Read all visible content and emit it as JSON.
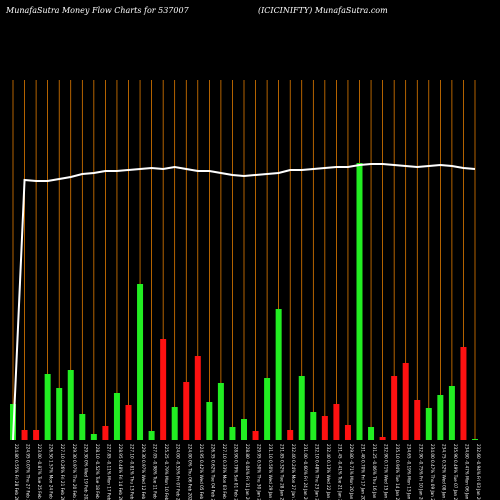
{
  "header": {
    "left_title": "MunafaSutra  Money Flow  Charts for 537007",
    "right_title": "(ICICINIFTY) MunafaSutra.com"
  },
  "chart_data": {
    "type": "bar",
    "title": "MunafaSutra  Money Flow  Charts for 537007",
    "categories": [
      "224.80 0.55% Fri 28 Feb 2025",
      "224.95 0.07% Thu 27 Feb 2025",
      "223.00 -0.87% Tue 25 Feb 2025",
      "226.50 1.57% Mon 24 Feb 2025",
      "227.10 0.26% Fri 21 Feb 2025",
      "229.30 0.97% Thu 20 Feb 2025",
      "229.30 0% Wed 19 Feb 2025",
      "228.10 -0.52% Tue 18 Feb 2025",
      "227.85 -0.11% Mon 17 Feb 2025",
      "228.95 0.48% Fri 14 Feb 2025",
      "227.10 -0.81% Thu 13 Feb 2025",
      "229.30 0.97% Wed 12 Feb 2025",
      "227.05 -0.98% Tue 11 Feb 2025",
      "225.25 -0.79% Mon 10 Feb 2025",
      "224.00 -0.55% Fri 07 Feb 2025",
      "224.00 0% Thu 06 Feb 2025",
      "224.95 0.42% Wed 05 Feb 2025",
      "226.35 0.62% Tue 04 Feb 2025",
      "227.10 0.33% Mon 03 Feb 2025",
      "228.90 0.79% Sat 01 Feb 2025",
      "228.80 -0.04% Fri 31 Jan 2025",
      "229.95 0.50% Thu 30 Jan 2025",
      "231.10 0.50% Wed 29 Jan 2025",
      "231.85 0.32% Tue 28 Jan 2025",
      "232.40 0.24% Mon 27 Jan 2025",
      "231.00 -0.60% Fri 24 Jan 2025",
      "232.10 0.48% Thu 23 Jan 2025",
      "232.40 0.13% Wed 22 Jan 2025",
      "231.45 -0.41% Tue 21 Jan 2025",
      "229.80 -0.71% Mon 20 Jan 2025",
      "231.40 0.70% Fri 17 Jan 2025",
      "231.25 -0.06% Thu 16 Jan 2025",
      "232.90 0.71% Wed 15 Jan 2025",
      "235.10 0.94% Tue 14 Jan 2025",
      "234.65 -0.19% Mon 13 Jan 2025",
      "232.90 -0.75% Fri 10 Jan 2025",
      "234.00 0.47% Thu 09 Jan 2025",
      "234.75 0.32% Wed 08 Jan 2025",
      "235.90 0.49% Tue 07 Jan 2025",
      "234.80 -0.47% Mon 06 Jan 2025",
      "232.60 -0.94% Fri 03 Jan 2025"
    ],
    "values": [
      36,
      10,
      10,
      66,
      52,
      70,
      26,
      6,
      14,
      47,
      35,
      156,
      9,
      101,
      33,
      58,
      84,
      38,
      57,
      13,
      21,
      9,
      62,
      131,
      10,
      64,
      28,
      24,
      36,
      15,
      277,
      13,
      3,
      64,
      77,
      40,
      32,
      45,
      54,
      93,
      1
    ],
    "directions": [
      "up",
      "down",
      "down",
      "up",
      "up",
      "up",
      "up",
      "up",
      "down",
      "up",
      "down",
      "up",
      "up",
      "down",
      "up",
      "down",
      "down",
      "up",
      "up",
      "up",
      "up",
      "down",
      "up",
      "up",
      "down",
      "up",
      "up",
      "down",
      "down",
      "down",
      "up",
      "up",
      "down",
      "down",
      "down",
      "down",
      "up",
      "up",
      "up",
      "down",
      "up"
    ],
    "price_line": [
      11,
      200,
      201,
      201,
      199,
      197,
      194,
      193,
      191,
      191,
      190,
      189,
      188,
      189,
      187,
      189,
      191,
      191,
      193,
      195,
      196,
      195,
      194,
      193,
      190,
      190,
      189,
      188,
      187,
      187,
      185,
      184,
      184,
      185,
      186,
      187,
      186,
      185,
      186,
      188,
      189
    ],
    "colors": {
      "up": "#22ee22",
      "down": "#ff1111",
      "grid": "#ff8c00",
      "line": "#ffffff",
      "background": "#000000"
    }
  }
}
